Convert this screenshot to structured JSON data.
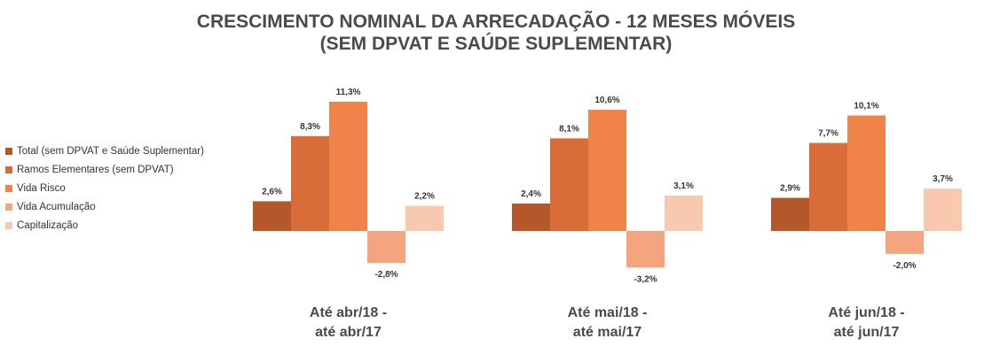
{
  "chart_data": {
    "type": "bar",
    "title": "CRESCIMENTO NOMINAL DA ARRECADAÇÃO - 12 MESES MÓVEIS",
    "subtitle": "(SEM DPVAT E SAÚDE SUPLEMENTAR)",
    "categories": [
      {
        "line1": "Até abr/18 -",
        "line2": "até abr/17"
      },
      {
        "line1": "Até mai/18 -",
        "line2": "até mai/17"
      },
      {
        "line1": "Até jun/18 -",
        "line2": "até jun/17"
      }
    ],
    "series": [
      {
        "name": "Total (sem DPVAT e Saúde Suplementar)",
        "color": "#b4582c",
        "values": [
          2.6,
          2.4,
          2.9
        ],
        "labels": [
          "2,6%",
          "2,4%",
          "2,9%"
        ]
      },
      {
        "name": "Ramos Elementares (sem DPVAT)",
        "color": "#d86d3a",
        "values": [
          8.3,
          8.1,
          7.7
        ],
        "labels": [
          "8,3%",
          "8,1%",
          "7,7%"
        ]
      },
      {
        "name": "Vida Risco",
        "color": "#f0834a",
        "values": [
          11.3,
          10.6,
          10.1
        ],
        "labels": [
          "11,3%",
          "10,6%",
          "10,1%"
        ]
      },
      {
        "name": "Vida Acumulação",
        "color": "#f4a57f",
        "values": [
          -2.8,
          -3.2,
          -2.0
        ],
        "labels": [
          "-2,8%",
          "-3,2%",
          "-2,0%"
        ]
      },
      {
        "name": "Capitalização",
        "color": "#f8c9ae",
        "values": [
          2.2,
          3.1,
          3.7
        ],
        "labels": [
          "2,2%",
          "3,1%",
          "3,7%"
        ]
      }
    ],
    "ylim": [
      -3.2,
      11.3
    ],
    "grid": false,
    "legend_position": "left"
  }
}
